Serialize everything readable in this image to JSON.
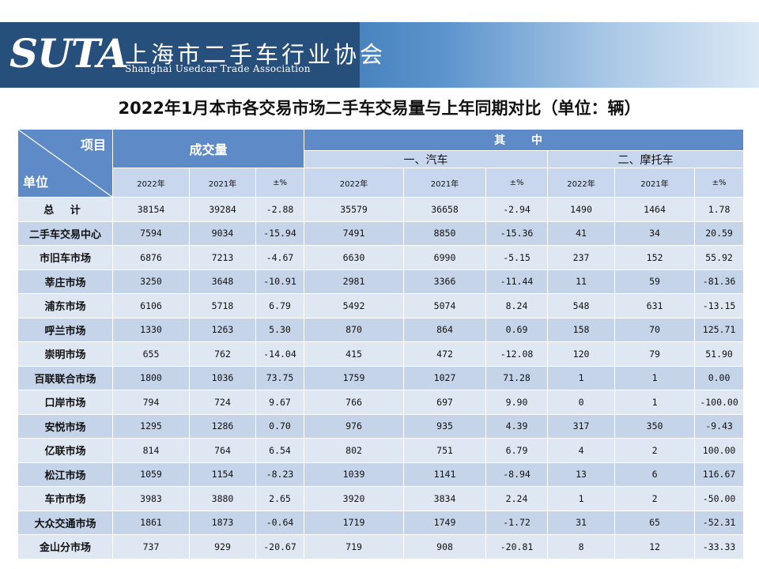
{
  "header": {
    "logo_text": "SUTA",
    "org_name_cn": "上海市二手车行业协会",
    "org_name_en": "Shanghai Usedcar Trade Association"
  },
  "title": "2022年1月本市各交易市场二手车交易量与上年同期对比（单位：辆）",
  "table": {
    "corner_top": "项目",
    "corner_bottom": "单位",
    "group_volume": "成交量",
    "group_of_which": "其 中",
    "sub_car": "一、汽车",
    "sub_moto": "二、摩托车",
    "col_headers": [
      "2022年",
      "2021年",
      "±%",
      "2022年",
      "2021年",
      "±%",
      "2022年",
      "2021年",
      "±%"
    ],
    "rows": [
      {
        "name": "总 计",
        "cells": [
          "38154",
          "39284",
          "-2.88",
          "35579",
          "36658",
          "-2.94",
          "1490",
          "1464",
          "1.78"
        ]
      },
      {
        "name": "二手车交易中心",
        "cells": [
          "7594",
          "9034",
          "-15.94",
          "7491",
          "8850",
          "-15.36",
          "41",
          "34",
          "20.59"
        ]
      },
      {
        "name": "市旧车市场",
        "cells": [
          "6876",
          "7213",
          "-4.67",
          "6630",
          "6990",
          "-5.15",
          "237",
          "152",
          "55.92"
        ]
      },
      {
        "name": "莘庄市场",
        "cells": [
          "3250",
          "3648",
          "-10.91",
          "2981",
          "3366",
          "-11.44",
          "11",
          "59",
          "-81.36"
        ]
      },
      {
        "name": "浦东市场",
        "cells": [
          "6106",
          "5718",
          "6.79",
          "5492",
          "5074",
          "8.24",
          "548",
          "631",
          "-13.15"
        ]
      },
      {
        "name": "呼兰市场",
        "cells": [
          "1330",
          "1263",
          "5.30",
          "870",
          "864",
          "0.69",
          "158",
          "70",
          "125.71"
        ]
      },
      {
        "name": "崇明市场",
        "cells": [
          "655",
          "762",
          "-14.04",
          "415",
          "472",
          "-12.08",
          "120",
          "79",
          "51.90"
        ]
      },
      {
        "name": "百联联合市场",
        "cells": [
          "1800",
          "1036",
          "73.75",
          "1759",
          "1027",
          "71.28",
          "1",
          "1",
          "0.00"
        ]
      },
      {
        "name": "口岸市场",
        "cells": [
          "794",
          "724",
          "9.67",
          "766",
          "697",
          "9.90",
          "0",
          "1",
          "-100.00"
        ]
      },
      {
        "name": "安悦市场",
        "cells": [
          "1295",
          "1286",
          "0.70",
          "976",
          "935",
          "4.39",
          "317",
          "350",
          "-9.43"
        ]
      },
      {
        "name": "亿联市场",
        "cells": [
          "814",
          "764",
          "6.54",
          "802",
          "751",
          "6.79",
          "4",
          "2",
          "100.00"
        ]
      },
      {
        "name": "松江市场",
        "cells": [
          "1059",
          "1154",
          "-8.23",
          "1039",
          "1141",
          "-8.94",
          "13",
          "6",
          "116.67"
        ]
      },
      {
        "name": "车市市场",
        "cells": [
          "3983",
          "3880",
          "2.65",
          "3920",
          "3834",
          "2.24",
          "1",
          "2",
          "-50.00"
        ]
      },
      {
        "name": "大众交通市场",
        "cells": [
          "1861",
          "1873",
          "-0.64",
          "1719",
          "1749",
          "-1.72",
          "31",
          "65",
          "-52.31"
        ]
      },
      {
        "name": "金山分市场",
        "cells": [
          "737",
          "929",
          "-20.67",
          "719",
          "908",
          "-20.81",
          "8",
          "12",
          "-33.33"
        ]
      }
    ]
  }
}
